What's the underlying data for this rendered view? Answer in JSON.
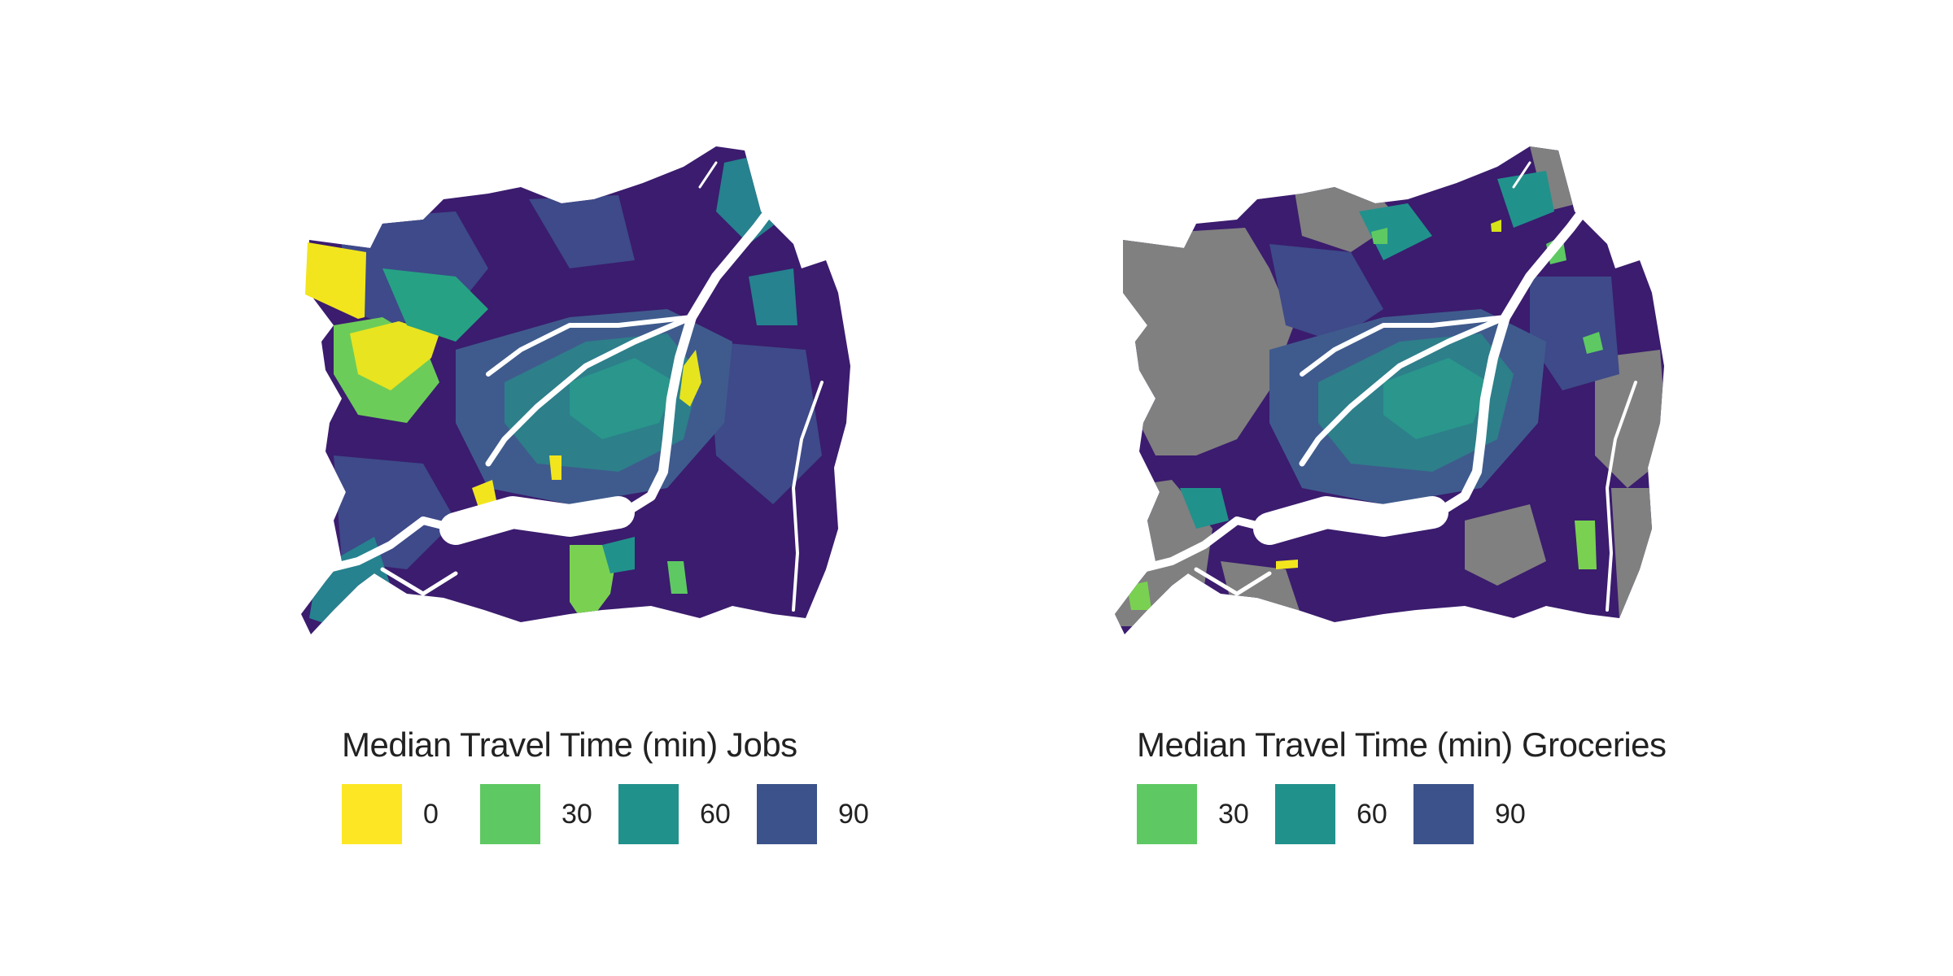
{
  "maps": [
    {
      "id": "jobs",
      "legend_title": "Median Travel Time (min) Jobs",
      "base_color": "#3b1c6e",
      "legend": [
        {
          "label": "0",
          "color": "#fde725"
        },
        {
          "label": "30",
          "color": "#5ec962"
        },
        {
          "label": "60",
          "color": "#21918c"
        },
        {
          "label": "90",
          "color": "#3b528b"
        }
      ]
    },
    {
      "id": "groceries",
      "legend_title": "Median Travel Time (min) Groceries",
      "base_color": "#3b1c6e",
      "no_data_color": "#808080",
      "legend": [
        {
          "label": "30",
          "color": "#5ec962"
        },
        {
          "label": "60",
          "color": "#21918c"
        },
        {
          "label": "90",
          "color": "#3b528b"
        }
      ]
    }
  ]
}
